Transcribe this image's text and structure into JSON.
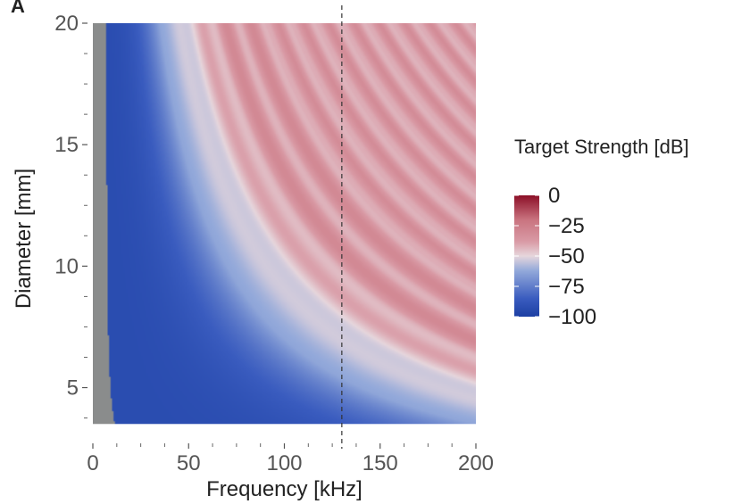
{
  "panel_label": "A",
  "chart_data": {
    "type": "heatmap",
    "xlabel": "Frequency [kHz]",
    "ylabel": "Diameter [mm]",
    "xlim": [
      0,
      200
    ],
    "ylim": [
      3,
      20
    ],
    "x_ticks": [
      0,
      50,
      100,
      150,
      200
    ],
    "x_tick_labels": [
      "0",
      "50",
      "100",
      "150",
      "200"
    ],
    "x_minor_ticks": [
      12.5,
      25,
      37.5,
      62.5,
      75,
      87.5,
      112.5,
      125,
      137.5,
      162.5,
      175,
      187.5
    ],
    "y_ticks": [
      5,
      10,
      15,
      20
    ],
    "y_tick_labels": [
      "5",
      "10",
      "15",
      "20"
    ],
    "y_minor_ticks": [
      3.75,
      6.25,
      7.5,
      8.75,
      11.25,
      12.5,
      13.75,
      16.25,
      17.5,
      18.75
    ],
    "data_extent": {
      "x": [
        0,
        200
      ],
      "y": [
        3.5,
        20
      ]
    },
    "vertical_reference_line": {
      "x": 130,
      "style": "dashed"
    },
    "invalid_region_color": "#8a8c8c",
    "colorbar": {
      "title": "Target Strength [dB]",
      "min": -100,
      "max": 0,
      "ticks": [
        0,
        -25,
        -50,
        -75,
        -100
      ],
      "tick_labels": [
        "0",
        "−25",
        "−50",
        "−75",
        "−100"
      ],
      "colors": [
        "#1c3fa3",
        "#3a5cbf",
        "#93a9da",
        "#e6d6dc",
        "#d99aa5",
        "#c9737f",
        "#8c0f27"
      ],
      "color_positions": [
        0.0,
        0.15,
        0.38,
        0.5,
        0.62,
        0.8,
        1.0
      ]
    },
    "grid": false,
    "legend_position": "right"
  }
}
